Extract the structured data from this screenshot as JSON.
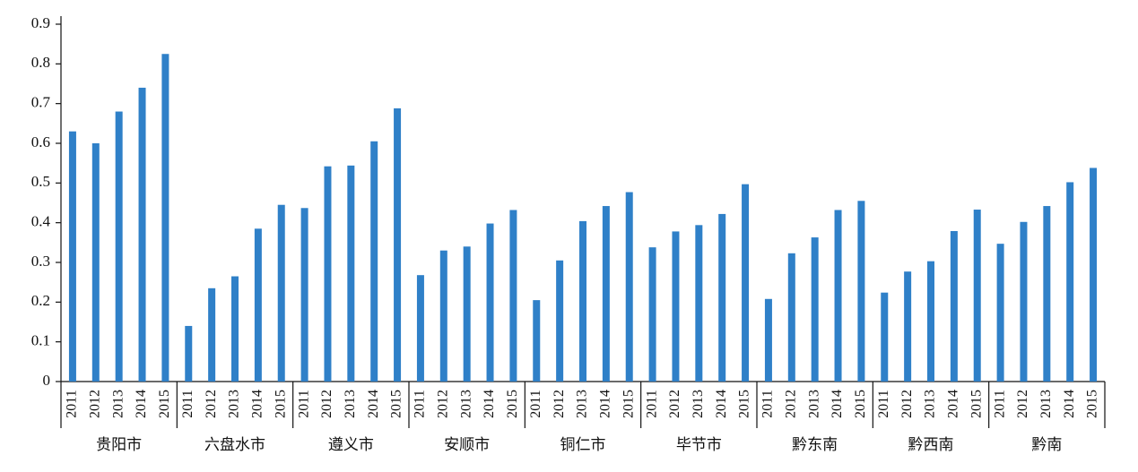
{
  "chart_data": {
    "type": "bar",
    "categories": [
      "2011",
      "2012",
      "2013",
      "2014",
      "2015"
    ],
    "groups": [
      {
        "name": "贵阳市",
        "values": [
          0.63,
          0.6,
          0.68,
          0.74,
          0.825
        ]
      },
      {
        "name": "六盘水市",
        "values": [
          0.14,
          0.235,
          0.265,
          0.385,
          0.445
        ]
      },
      {
        "name": "遵义市",
        "values": [
          0.437,
          0.542,
          0.544,
          0.605,
          0.688
        ]
      },
      {
        "name": "安顺市",
        "values": [
          0.268,
          0.33,
          0.34,
          0.398,
          0.432
        ]
      },
      {
        "name": "铜仁市",
        "values": [
          0.205,
          0.305,
          0.404,
          0.442,
          0.477
        ]
      },
      {
        "name": "毕节市",
        "values": [
          0.338,
          0.378,
          0.394,
          0.422,
          0.497
        ]
      },
      {
        "name": "黔东南",
        "values": [
          0.208,
          0.323,
          0.363,
          0.432,
          0.455
        ]
      },
      {
        "name": "黔西南",
        "values": [
          0.224,
          0.277,
          0.303,
          0.379,
          0.433
        ]
      },
      {
        "name": "黔南",
        "values": [
          0.347,
          0.402,
          0.442,
          0.502,
          0.538
        ]
      }
    ],
    "color": "#2f80c8",
    "ylim": [
      0,
      0.9
    ],
    "yticks": [
      0,
      0.1,
      0.2,
      0.3,
      0.4,
      0.5,
      0.6,
      0.7,
      0.8,
      0.9
    ]
  }
}
